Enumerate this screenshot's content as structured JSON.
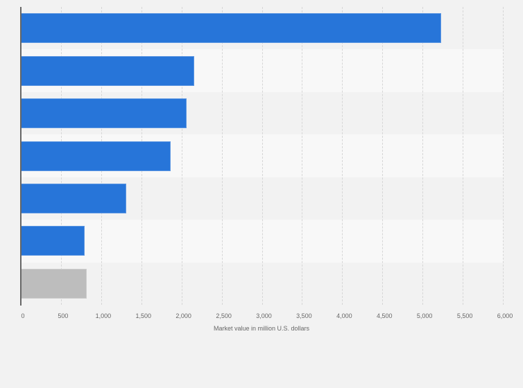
{
  "chart_data": {
    "type": "bar",
    "orientation": "horizontal",
    "title": "",
    "xlabel": "Market value in million U.S. dollars",
    "ylabel": "",
    "categories": [
      "",
      "",
      "",
      "",
      "",
      "",
      ""
    ],
    "values": [
      5233,
      2159,
      2064,
      1865,
      1313,
      794,
      820
    ],
    "bar_colors": [
      "#2775d9",
      "#2775d9",
      "#2775d9",
      "#2775d9",
      "#2775d9",
      "#2775d9",
      "#bdbdbd"
    ],
    "xlim": [
      0,
      6000
    ],
    "xticks": [
      0,
      500,
      1000,
      1500,
      2000,
      2500,
      3000,
      3500,
      4000,
      4500,
      5000,
      5500,
      6000
    ],
    "xtick_labels": [
      "0",
      "500",
      "1,000",
      "1,500",
      "2,000",
      "2,500",
      "3,000",
      "3,500",
      "4,000",
      "4,500",
      "5,000",
      "5,500",
      "6,000"
    ],
    "grid": true,
    "legend": null
  },
  "colors": {
    "background": "#f2f2f2",
    "band_alt": "#f8f8f8",
    "bar_primary": "#2775d9",
    "bar_highlight": "#bdbdbd",
    "axis": "#666666",
    "text": "#666666"
  }
}
